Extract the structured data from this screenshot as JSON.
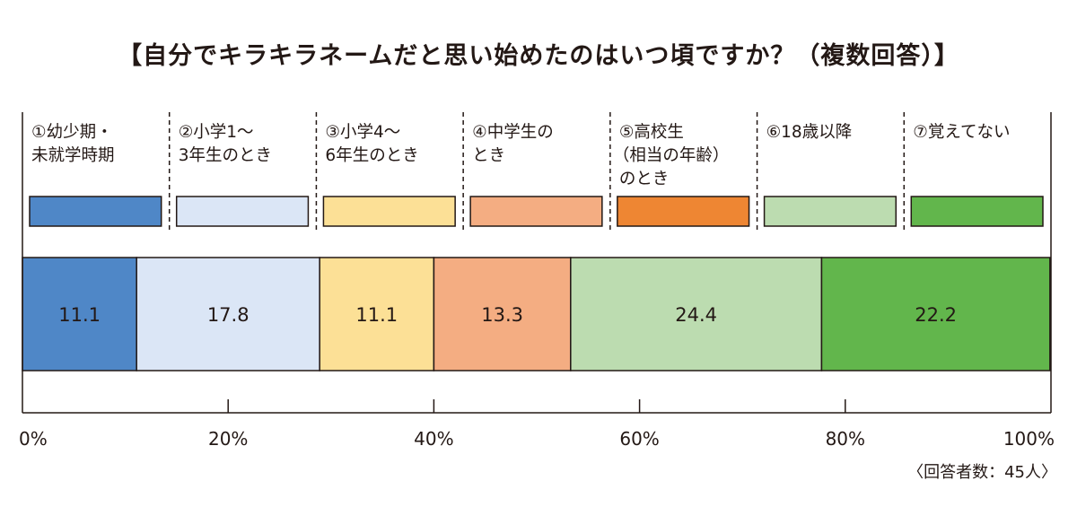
{
  "title": "【自分でキラキラネームだと思い始めたのはいつ頃ですか？（複数回答）】",
  "respondents": "〈回答者数：45人〉",
  "chart_data": {
    "type": "bar",
    "orientation": "horizontal-stacked-100",
    "categories": [
      "①幼少期・\n未就学時期",
      "②小学1～\n3年生のとき",
      "③小学4～\n6年生のとき",
      "④中学生の\nとき",
      "⑤高校生\n（相当の年齢）\nのとき",
      "⑥18歳以降",
      "⑦覚えてない"
    ],
    "colors": [
      "#4f87c7",
      "#dbe6f6",
      "#fce096",
      "#f4ad82",
      "#ee8633",
      "#bcdcb0",
      "#62b64c"
    ],
    "values": [
      11.1,
      17.8,
      11.1,
      13.3,
      0,
      24.4,
      22.2
    ],
    "value_labels": [
      "11.1",
      "17.8",
      "11.1",
      "13.3",
      "",
      "24.4",
      "22.2"
    ],
    "xlim": [
      0,
      100
    ],
    "xticks": [
      "0%",
      "20%",
      "40%",
      "60%",
      "80%",
      "100%"
    ],
    "xtick_values": [
      0,
      20,
      40,
      60,
      80,
      100
    ],
    "legend_position": "top"
  }
}
